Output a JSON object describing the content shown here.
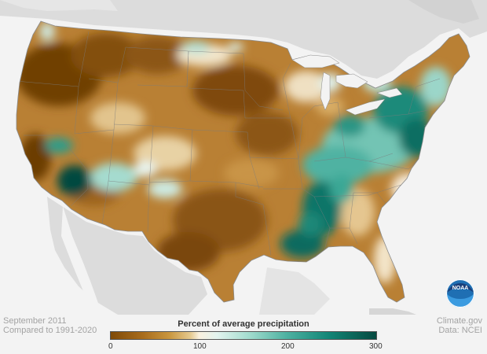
{
  "footer": {
    "date": "September 2011",
    "comparison": "Compared to 1991-2020",
    "source": "Climate.gov",
    "data_credit": "Data: NCEI"
  },
  "legend": {
    "title": "Percent of average precipitation",
    "ticks": [
      "0",
      "100",
      "200",
      "300"
    ],
    "range": [
      0,
      300
    ],
    "colors": {
      "dry": "#7f4a08",
      "normal": "#faf1df",
      "wet": "#064a40"
    }
  },
  "map": {
    "land_color": "#dcdcdc",
    "water_color": "#f3f3f3",
    "dry_color": "#a96c1f",
    "wet_color": "#2e9c8a"
  },
  "logo": {
    "text": "NOAA"
  }
}
